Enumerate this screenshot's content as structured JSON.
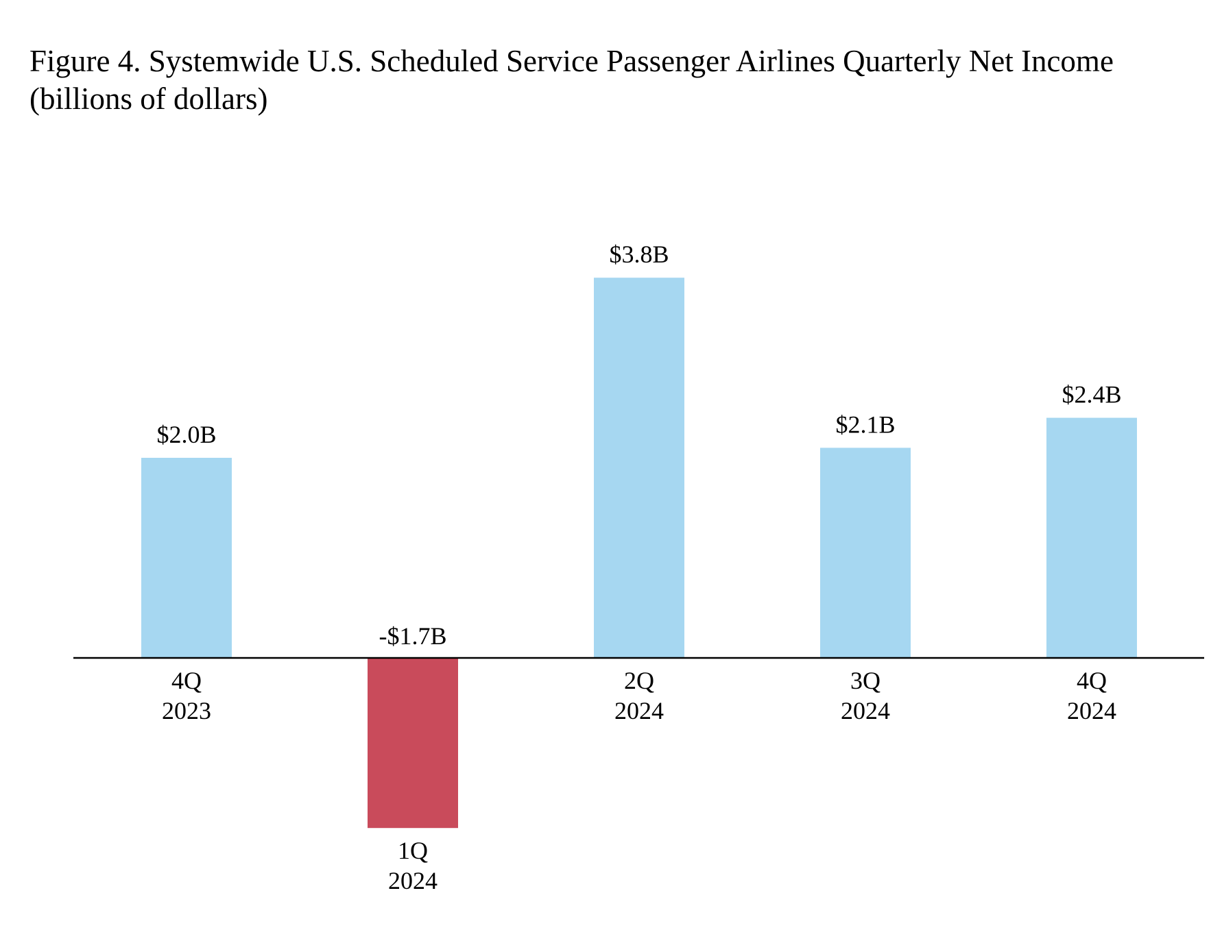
{
  "chart_data": {
    "type": "bar",
    "title": "Figure 4. Systemwide U.S. Scheduled Service Passenger Airlines Quarterly Net Income",
    "subtitle": "(billions of dollars)",
    "xlabel": "",
    "ylabel": "",
    "grid": false,
    "legend": "none",
    "categories": [
      [
        "4Q",
        "2023"
      ],
      [
        "1Q",
        "2024"
      ],
      [
        "2Q",
        "2024"
      ],
      [
        "3Q",
        "2024"
      ],
      [
        "4Q",
        "2024"
      ]
    ],
    "values": [
      2.0,
      -1.7,
      3.8,
      2.1,
      2.4
    ],
    "data_labels": [
      "$2.0B",
      "-$1.7B",
      "$3.8B",
      "$2.1B",
      "$2.4B"
    ],
    "ylim": [
      -1.7,
      3.8
    ],
    "colors": {
      "positive": "#A6D7F1",
      "negative": "#C94B5B",
      "axis": "#000000"
    }
  }
}
